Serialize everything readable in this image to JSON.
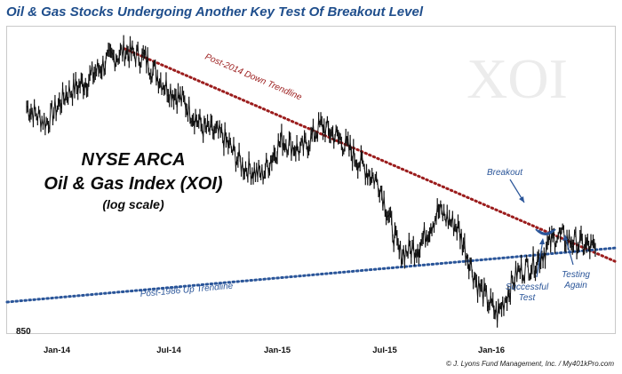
{
  "chart_data": {
    "type": "line",
    "title": "Oil & Gas Stocks Undergoing Another Key Test Of Breakout Level",
    "watermark": "XOI",
    "overlay_title": [
      "NYSE ARCA",
      "Oil & Gas Index (XOI)",
      "(log scale)"
    ],
    "y_scale": "log",
    "y_tick_labels": [
      "850"
    ],
    "x_tick_labels": [
      "Jan-14",
      "Jul-14",
      "Jan-15",
      "Jul-15",
      "Jan-16"
    ],
    "xlim": [
      "2013-12",
      "2016-07"
    ],
    "ylim": [
      850,
      1800
    ],
    "series": [
      {
        "color": "#111111",
        "x": [
          "2014-01",
          "2014-02",
          "2014-03",
          "2014-04",
          "2014-05",
          "2014-06",
          "2014-07",
          "2014-08",
          "2014-09",
          "2014-10",
          "2014-11",
          "2014-12",
          "2015-01",
          "2015-02",
          "2015-03",
          "2015-04",
          "2015-05",
          "2015-06",
          "2015-07",
          "2015-08",
          "2015-09",
          "2015-10",
          "2015-11",
          "2015-12",
          "2016-01",
          "2016-02",
          "2016-03",
          "2016-04",
          "2016-05",
          "2016-06"
        ],
        "y": [
          1500,
          1440,
          1550,
          1600,
          1680,
          1730,
          1700,
          1590,
          1520,
          1420,
          1390,
          1290,
          1260,
          1380,
          1340,
          1430,
          1380,
          1300,
          1230,
          1030,
          1050,
          1150,
          1100,
          950,
          880,
          980,
          1010,
          1080,
          1060,
          1040
        ]
      }
    ],
    "trendlines": [
      {
        "label": "Post-2014 Down Trendline",
        "color": "#9b1c1c",
        "style": "dotted",
        "from": {
          "x": "2014-06",
          "y": 1740
        },
        "to": {
          "x": "2016-07",
          "y": 1010
        }
      },
      {
        "label": "Post-1986 Up Trendline",
        "color": "#2a5599",
        "style": "dotted",
        "from": {
          "x": "2013-12",
          "y": 910
        },
        "to": {
          "x": "2016-07",
          "y": 1045
        }
      }
    ],
    "annotations": [
      "Breakout",
      "Successful Test",
      "Testing Again"
    ],
    "grid": false
  },
  "footer": "© J. Lyons Fund Management, Inc. / My401kPro.com",
  "colors": {
    "title": "#1f4e8c",
    "annotation": "#2a5599",
    "overlay": "#0a0a0a",
    "watermark": "#ececec"
  }
}
